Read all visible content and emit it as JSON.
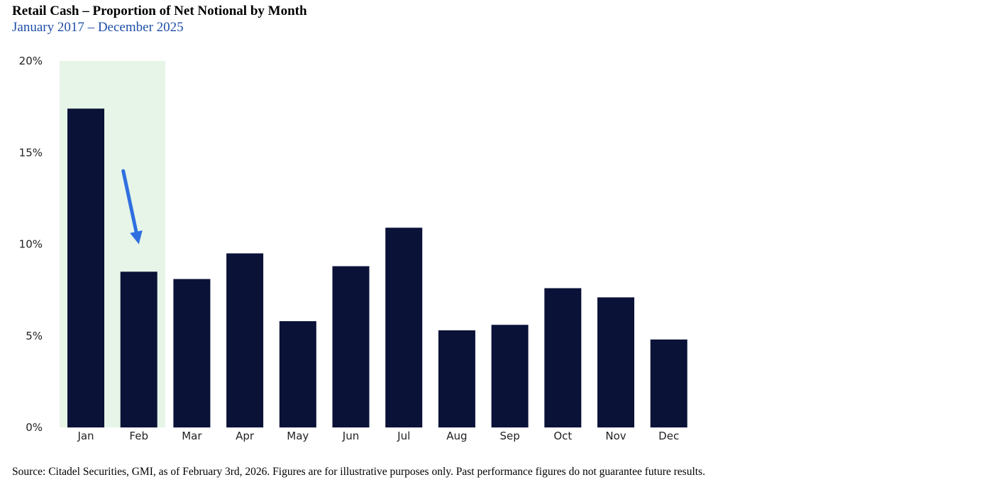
{
  "header": {
    "title": "Retail Cash – Proportion of Net Notional by Month",
    "subtitle": "January 2017 – December 2025"
  },
  "footer": {
    "source": "Source: Citadel Securities, GMI, as of February 3rd, 2026. Figures are for illustrative purposes only. Past performance figures do not guarantee future results."
  },
  "colors": {
    "bar": "#0a1238",
    "highlight": "#e6f5e8",
    "arrow": "#2f6fe0",
    "subtitle": "#1f4ea8"
  },
  "chart_data": {
    "type": "bar",
    "title": "Retail Cash – Proportion of Net Notional by Month",
    "subtitle": "January 2017 – December 2025",
    "xlabel": "",
    "ylabel": "",
    "categories": [
      "Jan",
      "Feb",
      "Mar",
      "Apr",
      "May",
      "Jun",
      "Jul",
      "Aug",
      "Sep",
      "Oct",
      "Nov",
      "Dec"
    ],
    "values": [
      17.4,
      8.5,
      8.1,
      9.5,
      5.8,
      8.8,
      10.9,
      5.3,
      5.6,
      7.6,
      7.1,
      4.8
    ],
    "unit": "%",
    "ylim": [
      0,
      20
    ],
    "yticks": [
      0,
      5,
      10,
      15,
      20
    ],
    "ytick_labels": [
      "0%",
      "5%",
      "10%",
      "15%",
      "20%"
    ],
    "grid": false,
    "legend": "none",
    "highlight_categories": [
      "Jan",
      "Feb"
    ],
    "annotations": [
      {
        "type": "arrow",
        "from": {
          "category": "Feb",
          "value": 14.0
        },
        "to": {
          "category": "Feb",
          "value": 10.0
        }
      }
    ]
  }
}
